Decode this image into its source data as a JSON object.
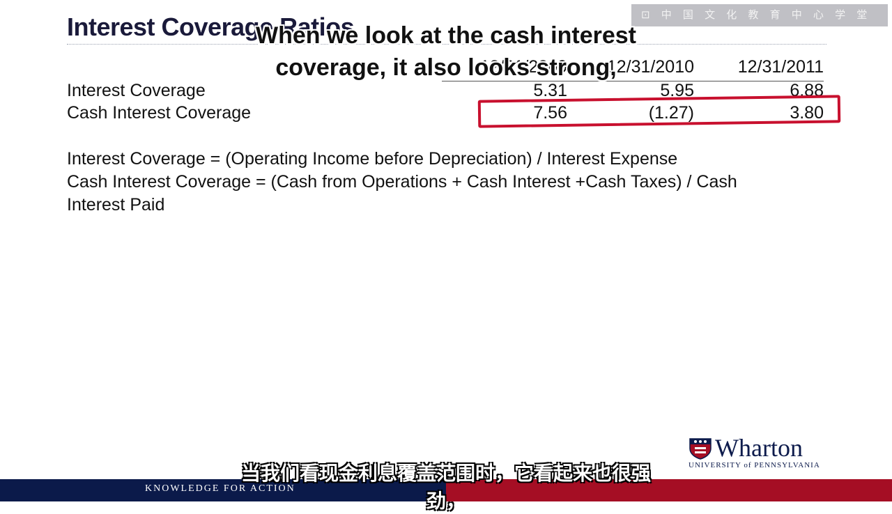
{
  "slide": {
    "title": "Interest Coverage Ratios"
  },
  "watermark": {
    "text": "⊡ 中 国 文 化 教 育 中 心 学 堂"
  },
  "table": {
    "headers": [
      "12/31/2009",
      "12/31/2010",
      "12/31/2011"
    ],
    "rows": [
      {
        "label": "Interest Coverage",
        "values": [
          "5.31",
          "5.95",
          "6.88"
        ]
      },
      {
        "label": "Cash Interest Coverage",
        "values": [
          "7.56",
          "(1.27)",
          "3.80"
        ]
      }
    ]
  },
  "formulas": {
    "line1": "Interest Coverage = (Operating Income before Depreciation) / Interest Expense",
    "line2": "Cash Interest Coverage = (Cash from Operations + Cash Interest +Cash Taxes) / Cash",
    "line3": "Interest Paid"
  },
  "captions": {
    "english": "When we look at the cash interest coverage, it also looks strong,",
    "chinese": "当我们看现金利息覆盖范围时，它看起来也很强劲，"
  },
  "branding": {
    "logo_name": "Wharton",
    "logo_sub": "UNIVERSITY of PENNSYLVANIA",
    "tagline": "KNOWLEDGE FOR ACTION"
  },
  "colors": {
    "highlight": "#c8102e",
    "footer_blue": "#0b1a4a",
    "footer_red": "#a50e24",
    "title": "#1a1a3a"
  }
}
